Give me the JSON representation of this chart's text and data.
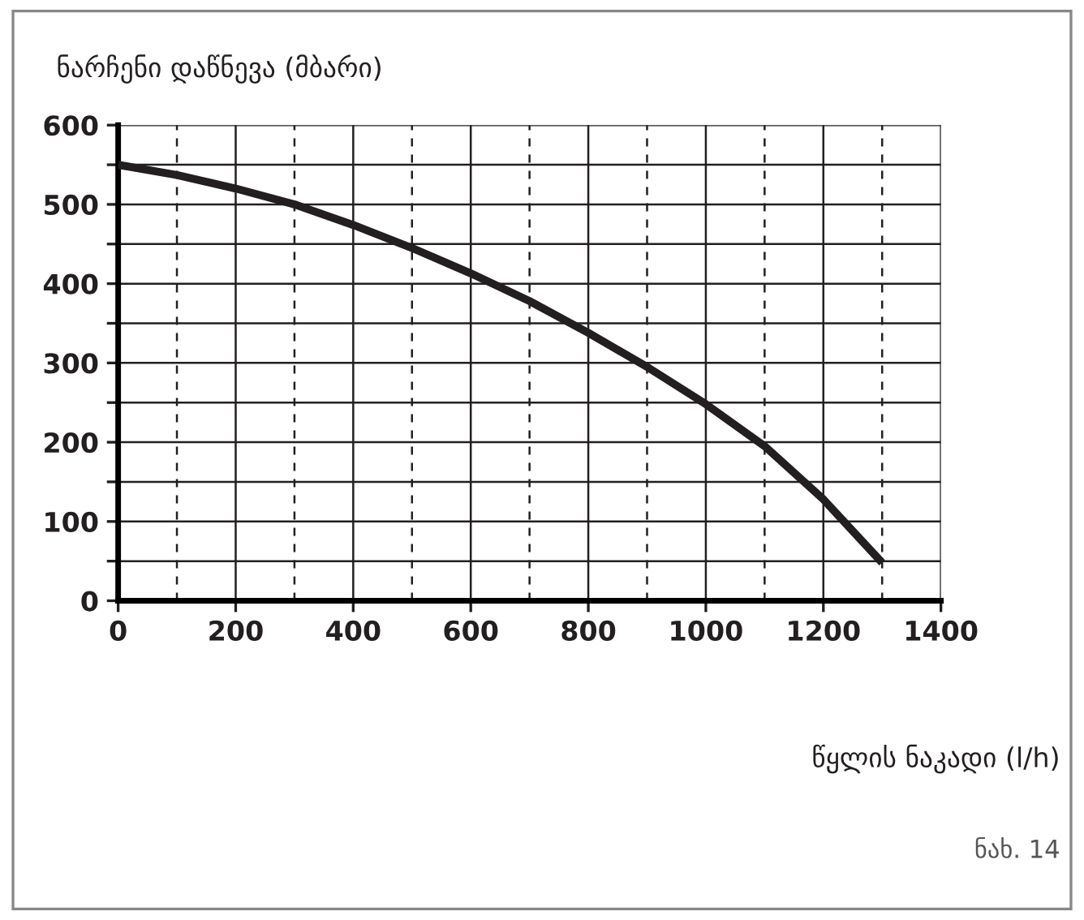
{
  "chart_data": {
    "type": "line",
    "ylabel": "ნარჩენი დაწნევა (მბარი)",
    "xlabel": "წყლის ნაკადი (l/h)",
    "annotations": [
      "ნახ. 14"
    ],
    "x": [
      0,
      100,
      200,
      300,
      400,
      500,
      600,
      700,
      800,
      900,
      1000,
      1100,
      1200,
      1300
    ],
    "series": [
      {
        "color": "#231f20",
        "values": [
          550,
          537,
          520,
          500,
          474,
          445,
          413,
          378,
          338,
          295,
          248,
          195,
          128,
          48
        ]
      }
    ],
    "xlim": [
      0,
      1400
    ],
    "ylim": [
      0,
      600
    ],
    "xticks": [
      0,
      {
        "value": 100,
        "label": null
      },
      200,
      {
        "value": 300,
        "label": null
      },
      400,
      {
        "value": 500,
        "label": null
      },
      600,
      {
        "value": 700,
        "label": null
      },
      800,
      {
        "value": 900,
        "label": null
      },
      1000,
      {
        "value": 1100,
        "label": null
      },
      1200,
      {
        "value": 1300,
        "label": null
      },
      1400
    ],
    "yticks": [
      0,
      {
        "value": 50,
        "label": null
      },
      100,
      {
        "value": 150,
        "label": null
      },
      200,
      {
        "value": 250,
        "label": null
      },
      300,
      {
        "value": 350,
        "label": null
      },
      400,
      {
        "value": 450,
        "label": null
      },
      500,
      {
        "value": 550,
        "label": null
      },
      600
    ],
    "grid": true,
    "marker": "none",
    "line_style": "solid"
  }
}
